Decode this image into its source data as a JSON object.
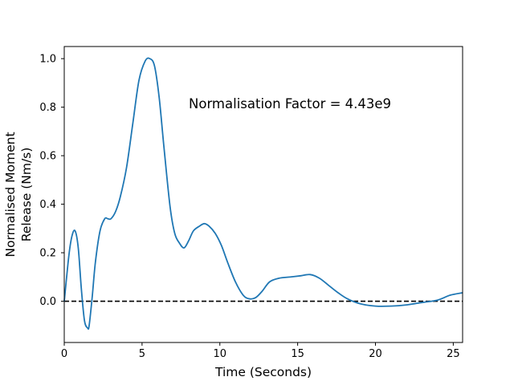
{
  "chart_data": {
    "type": "line",
    "xlabel": "Time (Seconds)",
    "ylabel_lines": [
      "Normalised Moment",
      "Release (Nm/s)"
    ],
    "annotation": "Normalisation Factor = 4.43e9",
    "xlim": [
      0,
      25.6
    ],
    "ylim": [
      -0.17,
      1.05
    ],
    "xticks": [
      0,
      5,
      10,
      15,
      20,
      25
    ],
    "yticks": [
      0.0,
      0.2,
      0.4,
      0.6,
      0.8,
      1.0
    ],
    "ytick_labels": [
      "0.0",
      "0.2",
      "0.4",
      "0.6",
      "0.8",
      "1.0"
    ],
    "grid": false,
    "line_color": "#1f77b4",
    "reference_line": {
      "y": 0,
      "style": "dashed",
      "color": "#000000"
    },
    "series": [
      {
        "x": [
          0,
          0.3,
          0.5,
          0.7,
          0.9,
          1.1,
          1.3,
          1.5,
          1.6,
          1.8,
          2.0,
          2.3,
          2.6,
          2.8,
          3.0,
          3.3,
          3.6,
          4.0,
          4.4,
          4.8,
          5.2,
          5.5,
          5.8,
          6.1,
          6.4,
          6.8,
          7.1,
          7.4,
          7.7,
          8.0,
          8.3,
          8.7,
          9.0,
          9.3,
          9.7,
          10.1,
          10.5,
          11.0,
          11.5,
          11.9,
          12.3,
          12.7,
          13.2,
          13.8,
          14.5,
          15.2,
          15.8,
          16.4,
          17.0,
          17.6,
          18.2,
          19.0,
          20.0,
          21.0,
          22.0,
          23.0,
          24.0,
          24.8,
          25.6
        ],
        "y": [
          0.0,
          0.19,
          0.27,
          0.29,
          0.22,
          0.05,
          -0.08,
          -0.11,
          -0.1,
          0.02,
          0.16,
          0.29,
          0.34,
          0.34,
          0.34,
          0.37,
          0.43,
          0.55,
          0.73,
          0.91,
          0.99,
          1.0,
          0.97,
          0.84,
          0.64,
          0.39,
          0.28,
          0.24,
          0.22,
          0.25,
          0.29,
          0.31,
          0.32,
          0.31,
          0.28,
          0.23,
          0.16,
          0.08,
          0.025,
          0.01,
          0.015,
          0.04,
          0.08,
          0.095,
          0.1,
          0.105,
          0.11,
          0.095,
          0.065,
          0.035,
          0.01,
          -0.01,
          -0.02,
          -0.02,
          -0.015,
          -0.005,
          0.005,
          0.025,
          0.035
        ]
      }
    ]
  }
}
